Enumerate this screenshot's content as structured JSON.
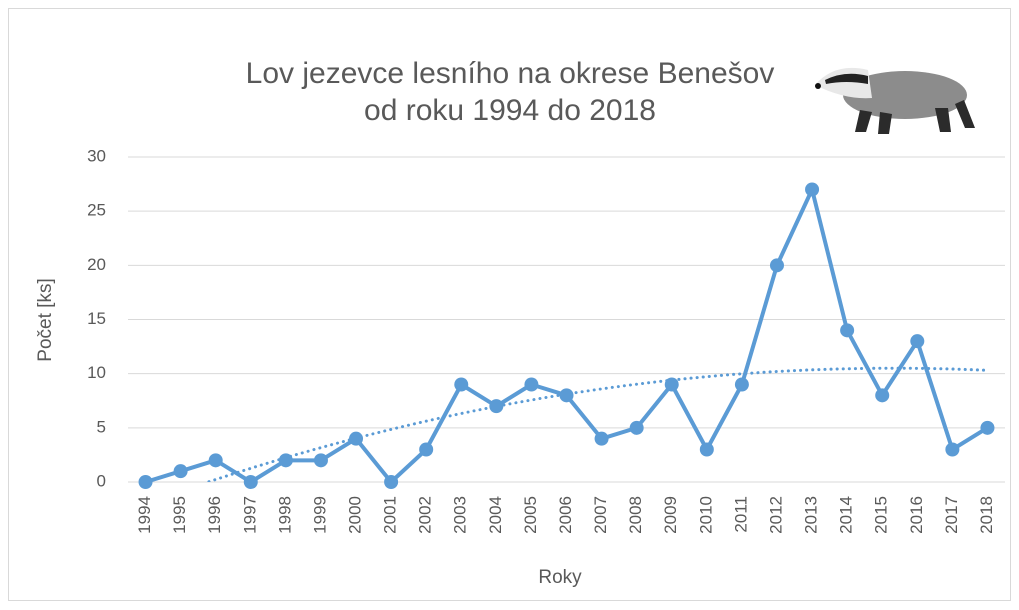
{
  "chart_data": {
    "type": "line",
    "title": [
      "Lov jezevce lesního na okrese Benešov",
      "od roku 1994 do 2018"
    ],
    "x_label": "Roky",
    "y_label": "Počet [ks]",
    "categories": [
      "1994",
      "1995",
      "1996",
      "1997",
      "1998",
      "1999",
      "2000",
      "2001",
      "2002",
      "2003",
      "2004",
      "2005",
      "2006",
      "2007",
      "2008",
      "2009",
      "2010",
      "2011",
      "2012",
      "2013",
      "2014",
      "2015",
      "2016",
      "2017",
      "2018"
    ],
    "values": [
      0,
      1,
      2,
      0,
      2,
      2,
      4,
      0,
      3,
      9,
      7,
      9,
      8,
      4,
      5,
      9,
      3,
      9,
      20,
      27,
      14,
      8,
      13,
      3,
      5
    ],
    "color": "#5b9bd5",
    "ylim": [
      0,
      30
    ],
    "yticks": [
      0,
      5,
      10,
      15,
      20,
      25,
      30
    ],
    "grid": true,
    "trendline": {
      "type": "polynomial",
      "order": 2,
      "style": "dotted"
    }
  }
}
